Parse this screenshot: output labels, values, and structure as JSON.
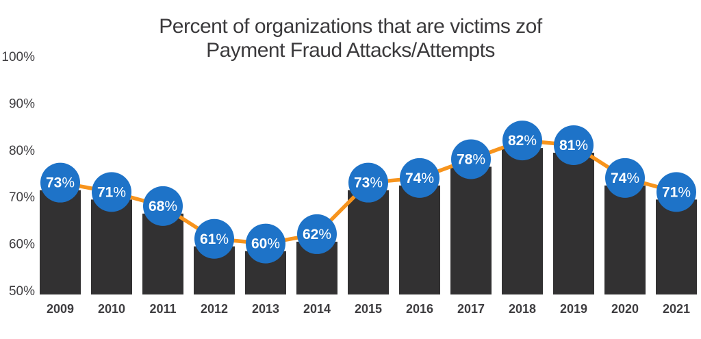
{
  "title": {
    "line1": "Percent of organizations that are victims zof",
    "line2": "Payment Fraud Attacks/Attempts"
  },
  "chart_data": {
    "type": "bar",
    "overlay": "line-with-point-labels",
    "title": "Percent of organizations that are victims zof Payment Fraud Attacks/Attempts",
    "categories": [
      "2009",
      "2010",
      "2011",
      "2012",
      "2013",
      "2014",
      "2015",
      "2016",
      "2017",
      "2018",
      "2019",
      "2020",
      "2021"
    ],
    "values": [
      73,
      71,
      68,
      61,
      60,
      62,
      73,
      74,
      78,
      82,
      81,
      74,
      71
    ],
    "unit": "%",
    "xlabel": "",
    "ylabel": "",
    "ylim": [
      50,
      100
    ],
    "y_ticks": [
      100,
      90,
      80,
      70,
      60,
      50
    ],
    "grid": false,
    "legend": false,
    "colors": {
      "bar": "#323132",
      "line": "#f7941d",
      "point_fill": "#1e73c8",
      "point_text": "#ffffff",
      "axis_text": "#3e3d40",
      "title_text": "#3b3a3c",
      "background": "#ffffff"
    }
  }
}
